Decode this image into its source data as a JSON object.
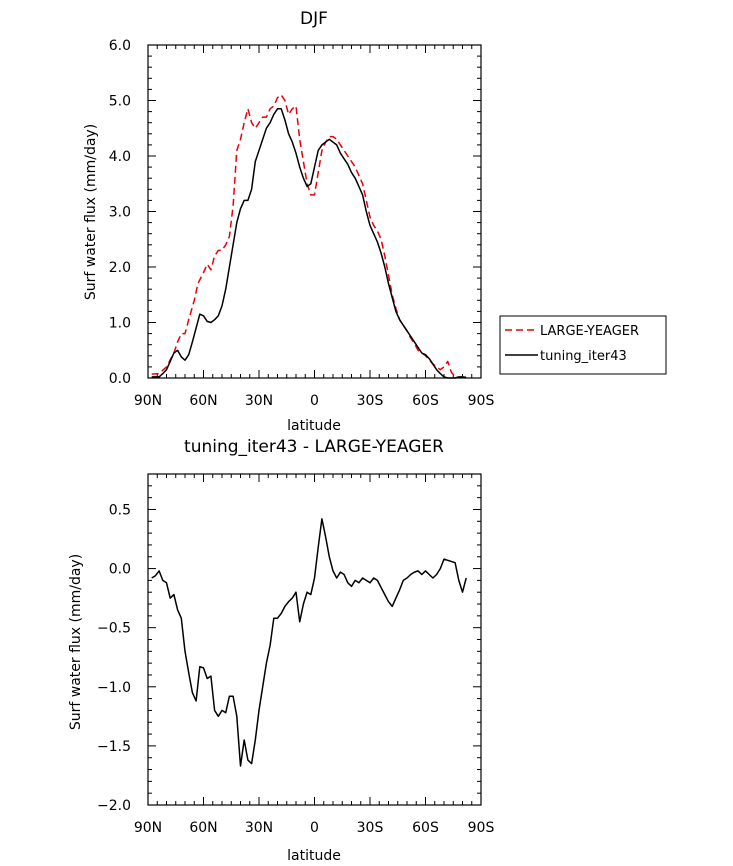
{
  "chart_data": [
    {
      "type": "line",
      "title": "DJF",
      "xlabel": "latitude",
      "ylabel": "Surf water flux (mm/day)",
      "xlim": [
        90,
        -90
      ],
      "ylim": [
        0,
        6
      ],
      "x_ticks": [
        90,
        60,
        30,
        0,
        -30,
        -60,
        -90
      ],
      "x_tick_labels": [
        "90N",
        "60N",
        "30N",
        "0",
        "30S",
        "60S",
        "90S"
      ],
      "y_ticks": [
        0,
        1,
        2,
        3,
        4,
        5,
        6
      ],
      "y_tick_labels": [
        "0.0",
        "1.0",
        "2.0",
        "3.0",
        "4.0",
        "5.0",
        "6.0"
      ],
      "legend_position": "right",
      "series": [
        {
          "name": "LARGE-YEAGER",
          "color": "#e8000b",
          "dash": "dashed",
          "points": [
            [
              88,
              0.07
            ],
            [
              84,
              0.08
            ],
            [
              80,
              0.2
            ],
            [
              76,
              0.45
            ],
            [
              74,
              0.65
            ],
            [
              72,
              0.8
            ],
            [
              70,
              0.8
            ],
            [
              68,
              1.05
            ],
            [
              65,
              1.4
            ],
            [
              63,
              1.7
            ],
            [
              60,
              1.9
            ],
            [
              58,
              2.05
            ],
            [
              56,
              1.95
            ],
            [
              54,
              2.2
            ],
            [
              52,
              2.3
            ],
            [
              50,
              2.3
            ],
            [
              48,
              2.4
            ],
            [
              46,
              2.55
            ],
            [
              44,
              3.1
            ],
            [
              42,
              4.1
            ],
            [
              40,
              4.3
            ],
            [
              38,
              4.6
            ],
            [
              36,
              4.85
            ],
            [
              34,
              4.6
            ],
            [
              32,
              4.5
            ],
            [
              30,
              4.6
            ],
            [
              28,
              4.7
            ],
            [
              26,
              4.7
            ],
            [
              24,
              4.85
            ],
            [
              22,
              4.9
            ],
            [
              20,
              5.05
            ],
            [
              18,
              5.1
            ],
            [
              16,
              5.0
            ],
            [
              14,
              4.75
            ],
            [
              12,
              4.85
            ],
            [
              10,
              4.9
            ],
            [
              8,
              4.3
            ],
            [
              6,
              3.9
            ],
            [
              4,
              3.5
            ],
            [
              2,
              3.3
            ],
            [
              0,
              3.3
            ],
            [
              -2,
              3.7
            ],
            [
              -4,
              4.1
            ],
            [
              -6,
              4.25
            ],
            [
              -8,
              4.35
            ],
            [
              -10,
              4.35
            ],
            [
              -12,
              4.3
            ],
            [
              -14,
              4.2
            ],
            [
              -16,
              4.1
            ],
            [
              -18,
              4.0
            ],
            [
              -20,
              3.9
            ],
            [
              -22,
              3.8
            ],
            [
              -24,
              3.65
            ],
            [
              -26,
              3.5
            ],
            [
              -28,
              3.2
            ],
            [
              -30,
              2.9
            ],
            [
              -32,
              2.75
            ],
            [
              -34,
              2.65
            ],
            [
              -36,
              2.5
            ],
            [
              -38,
              2.2
            ],
            [
              -40,
              1.85
            ],
            [
              -42,
              1.5
            ],
            [
              -44,
              1.25
            ],
            [
              -46,
              1.05
            ],
            [
              -48,
              0.95
            ],
            [
              -50,
              0.85
            ],
            [
              -52,
              0.72
            ],
            [
              -54,
              0.62
            ],
            [
              -56,
              0.5
            ],
            [
              -58,
              0.45
            ],
            [
              -60,
              0.4
            ],
            [
              -62,
              0.33
            ],
            [
              -64,
              0.25
            ],
            [
              -66,
              0.2
            ],
            [
              -68,
              0.15
            ],
            [
              -70,
              0.2
            ],
            [
              -72,
              0.3
            ],
            [
              -74,
              0.1
            ],
            [
              -76,
              0.03
            ]
          ]
        },
        {
          "name": "tuning_iter43",
          "color": "#000000",
          "dash": "solid",
          "points": [
            [
              88,
              0.02
            ],
            [
              84,
              0.02
            ],
            [
              82,
              0.08
            ],
            [
              80,
              0.15
            ],
            [
              78,
              0.3
            ],
            [
              76,
              0.45
            ],
            [
              74,
              0.5
            ],
            [
              72,
              0.38
            ],
            [
              70,
              0.32
            ],
            [
              68,
              0.42
            ],
            [
              66,
              0.65
            ],
            [
              64,
              0.9
            ],
            [
              62,
              1.15
            ],
            [
              60,
              1.12
            ],
            [
              58,
              1.02
            ],
            [
              56,
              1.0
            ],
            [
              54,
              1.05
            ],
            [
              52,
              1.12
            ],
            [
              50,
              1.3
            ],
            [
              48,
              1.6
            ],
            [
              46,
              2.0
            ],
            [
              44,
              2.4
            ],
            [
              42,
              2.8
            ],
            [
              40,
              3.05
            ],
            [
              38,
              3.2
            ],
            [
              36,
              3.2
            ],
            [
              34,
              3.4
            ],
            [
              32,
              3.9
            ],
            [
              30,
              4.1
            ],
            [
              28,
              4.3
            ],
            [
              26,
              4.5
            ],
            [
              24,
              4.6
            ],
            [
              22,
              4.75
            ],
            [
              20,
              4.85
            ],
            [
              18,
              4.85
            ],
            [
              16,
              4.65
            ],
            [
              14,
              4.4
            ],
            [
              12,
              4.25
            ],
            [
              10,
              4.05
            ],
            [
              8,
              3.8
            ],
            [
              6,
              3.6
            ],
            [
              4,
              3.45
            ],
            [
              2,
              3.5
            ],
            [
              0,
              3.8
            ],
            [
              -2,
              4.1
            ],
            [
              -4,
              4.2
            ],
            [
              -6,
              4.25
            ],
            [
              -8,
              4.3
            ],
            [
              -10,
              4.25
            ],
            [
              -12,
              4.2
            ],
            [
              -14,
              4.05
            ],
            [
              -16,
              3.95
            ],
            [
              -18,
              3.85
            ],
            [
              -20,
              3.7
            ],
            [
              -22,
              3.6
            ],
            [
              -24,
              3.45
            ],
            [
              -26,
              3.3
            ],
            [
              -28,
              3.0
            ],
            [
              -30,
              2.75
            ],
            [
              -32,
              2.6
            ],
            [
              -34,
              2.45
            ],
            [
              -36,
              2.25
            ],
            [
              -38,
              2.0
            ],
            [
              -40,
              1.7
            ],
            [
              -42,
              1.45
            ],
            [
              -44,
              1.2
            ],
            [
              -46,
              1.05
            ],
            [
              -48,
              0.95
            ],
            [
              -50,
              0.85
            ],
            [
              -52,
              0.75
            ],
            [
              -54,
              0.65
            ],
            [
              -56,
              0.55
            ],
            [
              -58,
              0.45
            ],
            [
              -60,
              0.42
            ],
            [
              -62,
              0.35
            ],
            [
              -64,
              0.25
            ],
            [
              -66,
              0.15
            ],
            [
              -68,
              0.08
            ],
            [
              -70,
              0.02
            ],
            [
              -72,
              0.0
            ],
            [
              -74,
              0.0
            ],
            [
              -76,
              0.0
            ],
            [
              -78,
              0.02
            ],
            [
              -80,
              0.02
            ],
            [
              -82,
              0.01
            ]
          ]
        }
      ]
    },
    {
      "type": "line",
      "title": "tuning_iter43 - LARGE-YEAGER",
      "xlabel": "latitude",
      "ylabel": "Surf water flux (mm/day)",
      "xlim": [
        90,
        -90
      ],
      "ylim": [
        -2.0,
        0.8
      ],
      "x_ticks": [
        90,
        60,
        30,
        0,
        -30,
        -60,
        -90
      ],
      "x_tick_labels": [
        "90N",
        "60N",
        "30N",
        "0",
        "30S",
        "60S",
        "90S"
      ],
      "y_ticks": [
        -2.0,
        -1.5,
        -1.0,
        -0.5,
        0.0,
        0.5
      ],
      "y_tick_labels": [
        "−2.0",
        "−1.5",
        "−1.0",
        "−0.5",
        "0.0",
        "0.5"
      ],
      "series": [
        {
          "name": "tuning_iter43 - LARGE-YEAGER",
          "color": "#000000",
          "dash": "solid",
          "points": [
            [
              88,
              -0.08
            ],
            [
              86,
              -0.06
            ],
            [
              84,
              -0.02
            ],
            [
              82,
              -0.1
            ],
            [
              80,
              -0.12
            ],
            [
              78,
              -0.25
            ],
            [
              76,
              -0.22
            ],
            [
              74,
              -0.35
            ],
            [
              72,
              -0.42
            ],
            [
              70,
              -0.7
            ],
            [
              68,
              -0.88
            ],
            [
              66,
              -1.05
            ],
            [
              64,
              -1.12
            ],
            [
              62,
              -0.83
            ],
            [
              60,
              -0.84
            ],
            [
              58,
              -0.93
            ],
            [
              56,
              -0.91
            ],
            [
              54,
              -1.2
            ],
            [
              52,
              -1.25
            ],
            [
              50,
              -1.2
            ],
            [
              48,
              -1.22
            ],
            [
              46,
              -1.08
            ],
            [
              44,
              -1.08
            ],
            [
              42,
              -1.25
            ],
            [
              40,
              -1.67
            ],
            [
              38,
              -1.45
            ],
            [
              36,
              -1.62
            ],
            [
              34,
              -1.65
            ],
            [
              32,
              -1.45
            ],
            [
              30,
              -1.2
            ],
            [
              28,
              -1.0
            ],
            [
              26,
              -0.8
            ],
            [
              24,
              -0.65
            ],
            [
              22,
              -0.42
            ],
            [
              20,
              -0.42
            ],
            [
              18,
              -0.38
            ],
            [
              16,
              -0.32
            ],
            [
              14,
              -0.28
            ],
            [
              12,
              -0.25
            ],
            [
              10,
              -0.2
            ],
            [
              8,
              -0.45
            ],
            [
              6,
              -0.3
            ],
            [
              4,
              -0.2
            ],
            [
              2,
              -0.22
            ],
            [
              0,
              -0.08
            ],
            [
              -2,
              0.18
            ],
            [
              -4,
              0.42
            ],
            [
              -6,
              0.27
            ],
            [
              -8,
              0.1
            ],
            [
              -10,
              -0.02
            ],
            [
              -12,
              -0.08
            ],
            [
              -14,
              -0.03
            ],
            [
              -16,
              -0.05
            ],
            [
              -18,
              -0.12
            ],
            [
              -20,
              -0.15
            ],
            [
              -22,
              -0.1
            ],
            [
              -24,
              -0.12
            ],
            [
              -26,
              -0.08
            ],
            [
              -28,
              -0.1
            ],
            [
              -30,
              -0.12
            ],
            [
              -32,
              -0.08
            ],
            [
              -34,
              -0.1
            ],
            [
              -36,
              -0.16
            ],
            [
              -38,
              -0.22
            ],
            [
              -40,
              -0.28
            ],
            [
              -42,
              -0.32
            ],
            [
              -44,
              -0.25
            ],
            [
              -46,
              -0.18
            ],
            [
              -48,
              -0.1
            ],
            [
              -50,
              -0.08
            ],
            [
              -52,
              -0.05
            ],
            [
              -54,
              -0.03
            ],
            [
              -56,
              -0.02
            ],
            [
              -58,
              -0.05
            ],
            [
              -60,
              -0.02
            ],
            [
              -62,
              -0.05
            ],
            [
              -64,
              -0.08
            ],
            [
              -66,
              -0.05
            ],
            [
              -68,
              0.0
            ],
            [
              -70,
              0.08
            ],
            [
              -72,
              0.07
            ],
            [
              -74,
              0.06
            ],
            [
              -76,
              0.05
            ],
            [
              -78,
              -0.1
            ],
            [
              -80,
              -0.2
            ],
            [
              -82,
              -0.08
            ]
          ]
        }
      ]
    }
  ]
}
